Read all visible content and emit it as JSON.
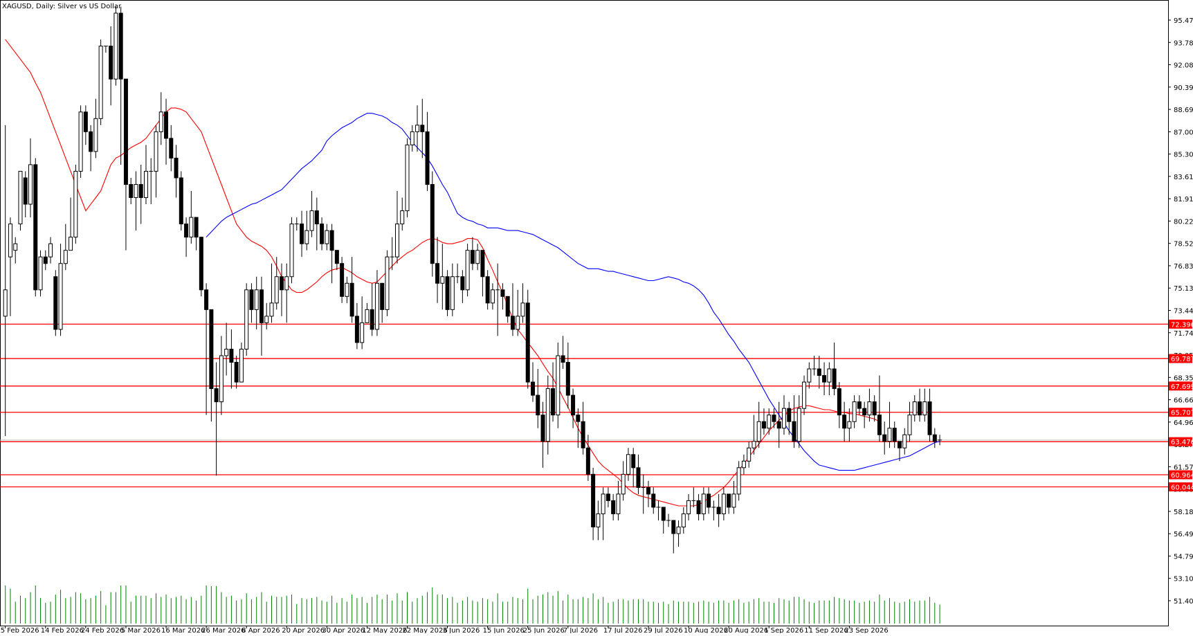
{
  "header": {
    "title": "XAGUSD, Daily:  Silver vs US Dollar"
  },
  "colors": {
    "background": "#ffffff",
    "candle_up_fill": "#ffffff",
    "candle_down_fill": "#000000",
    "wick": "#000000",
    "ma_fast": "#ff0000",
    "ma_slow": "#0000ff",
    "level_line": "#ff0000",
    "level_tag_bg": "#ff0000",
    "level_tag_text": "#ffffff",
    "volume": "#008000",
    "last_price_line": "#c0c0c0"
  },
  "chart_data": {
    "type": "candlestick",
    "title": "XAGUSD, Daily:  Silver vs US Dollar",
    "grid": false,
    "y_ticks": [
      "95.475",
      "93.780",
      "92.085",
      "90.390",
      "88.695",
      "87.000",
      "85.305",
      "83.610",
      "81.915",
      "80.220",
      "78.525",
      "76.830",
      "75.135",
      "73.440",
      "71.745",
      "70.050",
      "68.355",
      "66.660",
      "64.965",
      "63.270",
      "61.575",
      "59.880",
      "58.185",
      "56.490",
      "54.795",
      "53.100",
      "51.405"
    ],
    "ylim": [
      50.6,
      96.9
    ],
    "x_labels": [
      "5 Feb 2026",
      "14 Feb 2026",
      "24 Feb 2026",
      "5 Mar 2026",
      "16 Mar 2026",
      "26 Mar 2026",
      "8 Apr 2026",
      "20 Apr 2026",
      "30 Apr 2026",
      "12 May 2026",
      "22 May 2026",
      "3 Jun 2026",
      "15 Jun 2026",
      "25 Jun 2026",
      "7 Jul 2026",
      "17 Jul 2026",
      "29 Jul 2026",
      "10 Aug 2026",
      "20 Aug 2026",
      "1 Sep 2026",
      "11 Sep 2026",
      "23 Sep 2026"
    ],
    "x_label_bar_index": [
      0,
      8,
      16,
      24,
      32,
      40,
      48,
      56,
      64,
      72,
      80,
      88,
      96,
      104,
      112,
      120,
      128,
      136,
      144,
      152,
      160,
      168
    ],
    "horizontal_levels": [
      {
        "value": 72.396,
        "label": "72.396"
      },
      {
        "value": 69.787,
        "label": "69.787"
      },
      {
        "value": 67.699,
        "label": "67.699"
      },
      {
        "value": 65.707,
        "label": "65.707"
      },
      {
        "value": 63.476,
        "label": "63.476"
      },
      {
        "value": 60.964,
        "label": "60.964"
      },
      {
        "value": 60.044,
        "label": "60.044"
      }
    ],
    "last_price": 63.6,
    "ohlc": [
      [
        73,
        75,
        63.9,
        87.5
      ],
      [
        77.5,
        80,
        73,
        80.5
      ],
      [
        78,
        78.5,
        77,
        79
      ],
      [
        80,
        84,
        79.5,
        84
      ],
      [
        83.5,
        81.5,
        80.5,
        84
      ],
      [
        81.5,
        84.5,
        80.5,
        86.5
      ],
      [
        84.5,
        75,
        74.5,
        85
      ],
      [
        75,
        77.5,
        74.5,
        78
      ],
      [
        77.5,
        77,
        76.5,
        78
      ],
      [
        77.5,
        78.5,
        77,
        79
      ],
      [
        76,
        72,
        71.5,
        76.5
      ],
      [
        72,
        77,
        71.5,
        78.5
      ],
      [
        77,
        78,
        76.5,
        80
      ],
      [
        78,
        79,
        78,
        82
      ],
      [
        79,
        84,
        78.5,
        84.5
      ],
      [
        84,
        88.5,
        83.5,
        89
      ],
      [
        88.5,
        87,
        86,
        89
      ],
      [
        87,
        85.5,
        84,
        87.5
      ],
      [
        85.5,
        88,
        85,
        89.5
      ],
      [
        88,
        93.5,
        87.5,
        94
      ],
      [
        93.5,
        93.5,
        93,
        93.5
      ],
      [
        93.5,
        91,
        89,
        95
      ],
      [
        91,
        96,
        90.5,
        96.5
      ],
      [
        96,
        91,
        84.5,
        96.5
      ],
      [
        91,
        83,
        78,
        91
      ],
      [
        83,
        82,
        81.5,
        83.5
      ],
      [
        82,
        83,
        79.5,
        84
      ],
      [
        83,
        82,
        80,
        84.5
      ],
      [
        82,
        84,
        81.5,
        86
      ],
      [
        84,
        84,
        81.5,
        85
      ],
      [
        84,
        87,
        82,
        87.5
      ],
      [
        87,
        88.5,
        86,
        90
      ],
      [
        88.5,
        86.5,
        84.5,
        89.5
      ],
      [
        86.5,
        85,
        84,
        87.5
      ],
      [
        85,
        83.5,
        82,
        86
      ],
      [
        83.5,
        80,
        79.5,
        84
      ],
      [
        80,
        79,
        77.5,
        80.5
      ],
      [
        79,
        80.5,
        78.5,
        82.5
      ],
      [
        80.5,
        79,
        78,
        80.5
      ],
      [
        79,
        75,
        74.5,
        79
      ],
      [
        75,
        73.5,
        65.5,
        75.5
      ],
      [
        73.5,
        67.5,
        65,
        73.5
      ],
      [
        67.5,
        66.5,
        60.9,
        69.5
      ],
      [
        66.5,
        70,
        65.5,
        71.5
      ],
      [
        70,
        70.5,
        68.5,
        72.5
      ],
      [
        70.5,
        69.5,
        67.5,
        72
      ],
      [
        69.5,
        68,
        67.5,
        70
      ],
      [
        68,
        70.5,
        68,
        71
      ],
      [
        70.5,
        75,
        70,
        75.5
      ],
      [
        75,
        73.5,
        72.5,
        75.5
      ],
      [
        73.5,
        75,
        72,
        76
      ],
      [
        75,
        72.5,
        70,
        76
      ],
      [
        72.5,
        73,
        72,
        74
      ],
      [
        73,
        74,
        72.5,
        77
      ],
      [
        74,
        76,
        73.5,
        77.5
      ],
      [
        76,
        75,
        73,
        77
      ],
      [
        75,
        76,
        72.5,
        77
      ],
      [
        76,
        80,
        75.5,
        80.5
      ],
      [
        80,
        80,
        79.5,
        80.5
      ],
      [
        80,
        78.5,
        77.5,
        81
      ],
      [
        78.5,
        79.5,
        78,
        81
      ],
      [
        79.5,
        81,
        79,
        82.5
      ],
      [
        81,
        80,
        78,
        82
      ],
      [
        80,
        78.5,
        78,
        80.5
      ],
      [
        78.5,
        79.5,
        78,
        80
      ],
      [
        79.5,
        78,
        75.5,
        80
      ],
      [
        78,
        77,
        76.5,
        78
      ],
      [
        77,
        74.5,
        74,
        77.5
      ],
      [
        74.5,
        75.5,
        74,
        76
      ],
      [
        75.5,
        73,
        72.5,
        77.5
      ],
      [
        73,
        71,
        70.5,
        74
      ],
      [
        71,
        72.5,
        70.5,
        74.5
      ],
      [
        72.5,
        73.5,
        72.5,
        74
      ],
      [
        73.5,
        72,
        71.5,
        75.5
      ],
      [
        72,
        75.5,
        71.5,
        76.5
      ],
      [
        75.5,
        73.5,
        72.5,
        75.5
      ],
      [
        73.5,
        77.5,
        73,
        78
      ],
      [
        77.5,
        77.5,
        76.5,
        79
      ],
      [
        77.5,
        80,
        77,
        82.5
      ],
      [
        80,
        81,
        79.5,
        82
      ],
      [
        81,
        86,
        80.5,
        86.5
      ],
      [
        86,
        87,
        85.5,
        87.5
      ],
      [
        87,
        87.5,
        85.5,
        89
      ],
      [
        87.5,
        87,
        85,
        89.5
      ],
      [
        87,
        83,
        82.5,
        88.5
      ],
      [
        83,
        77,
        76,
        84
      ],
      [
        77,
        75.5,
        74,
        79
      ],
      [
        75.5,
        76,
        73.5,
        78.5
      ],
      [
        76,
        73.5,
        73,
        76.5
      ],
      [
        73.5,
        76,
        73,
        77
      ],
      [
        76,
        76,
        75.5,
        77
      ],
      [
        76,
        75,
        74,
        76.5
      ],
      [
        75,
        78,
        74.5,
        78.5
      ],
      [
        78,
        77,
        76.5,
        79
      ],
      [
        77,
        78,
        76.5,
        78.5
      ],
      [
        78,
        76,
        74.5,
        78
      ],
      [
        76,
        74,
        73.5,
        76.5
      ],
      [
        74,
        75,
        73.5,
        75.5
      ],
      [
        75,
        75,
        71.5,
        77
      ],
      [
        75,
        74.5,
        73.5,
        75.5
      ],
      [
        74.5,
        73,
        72.5,
        74.5
      ],
      [
        73,
        72,
        71.5,
        75.5
      ],
      [
        72,
        73,
        71.5,
        75
      ],
      [
        73,
        74,
        72.5,
        75.5
      ],
      [
        74,
        68,
        67.5,
        75
      ],
      [
        68,
        67,
        66.5,
        69.5
      ],
      [
        67,
        65.5,
        64.5,
        69
      ],
      [
        65.5,
        63.5,
        61.5,
        66.5
      ],
      [
        63.5,
        67.5,
        62.5,
        68.5
      ],
      [
        67.5,
        65.5,
        65,
        69.5
      ],
      [
        65.5,
        70,
        64.5,
        71
      ],
      [
        70,
        69.5,
        69,
        71.5
      ],
      [
        69.5,
        67,
        66,
        71
      ],
      [
        67,
        65.5,
        64.5,
        67.5
      ],
      [
        65.5,
        65,
        63,
        66
      ],
      [
        65,
        63,
        62.5,
        66.5
      ],
      [
        63,
        61,
        60.5,
        64
      ],
      [
        61,
        57,
        56,
        61.5
      ],
      [
        57,
        58,
        56,
        59
      ],
      [
        58,
        59.5,
        56,
        60
      ],
      [
        59.5,
        59,
        58.5,
        60
      ],
      [
        59,
        58,
        57.5,
        59.5
      ],
      [
        58,
        59.5,
        57.5,
        60.5
      ],
      [
        59.5,
        61,
        59,
        62
      ],
      [
        61,
        62.5,
        60.5,
        63
      ],
      [
        62.5,
        61.5,
        60,
        63
      ],
      [
        61.5,
        60,
        59.5,
        62.5
      ],
      [
        60,
        60,
        58,
        61
      ],
      [
        60,
        59.5,
        58.5,
        60.5
      ],
      [
        59.5,
        58.5,
        58,
        60
      ],
      [
        58.5,
        58.5,
        57.5,
        59
      ],
      [
        58.5,
        57.5,
        56.5,
        58.5
      ],
      [
        57.5,
        57.5,
        57,
        58
      ],
      [
        57.5,
        56.5,
        55,
        57.5
      ],
      [
        56.5,
        57,
        55.5,
        57.5
      ],
      [
        57,
        58,
        56.5,
        58.5
      ],
      [
        58,
        59,
        57.5,
        59.5
      ],
      [
        59,
        59,
        58.5,
        60
      ],
      [
        59,
        58,
        57.5,
        59.5
      ],
      [
        58,
        59.5,
        57.5,
        60
      ],
      [
        59.5,
        58.5,
        58,
        60
      ],
      [
        58.5,
        58.5,
        57.5,
        59
      ],
      [
        58.5,
        58,
        57,
        59.5
      ],
      [
        58,
        59.5,
        57.5,
        60
      ],
      [
        59.5,
        58.5,
        58,
        59.5
      ],
      [
        58.5,
        59.5,
        58,
        60.5
      ],
      [
        59.5,
        61.5,
        59,
        62
      ],
      [
        61.5,
        62,
        61,
        62.5
      ],
      [
        62,
        63,
        61.5,
        63.5
      ],
      [
        63,
        63.5,
        62.5,
        65.5
      ],
      [
        63.5,
        65,
        63,
        66.5
      ],
      [
        65,
        64.5,
        64,
        66
      ],
      [
        64.5,
        65.5,
        64,
        66
      ],
      [
        65.5,
        65,
        64.5,
        66
      ],
      [
        65,
        64.5,
        63,
        66.5
      ],
      [
        64.5,
        66,
        64,
        67
      ],
      [
        66,
        65,
        64,
        66.5
      ],
      [
        65,
        63.5,
        63,
        67
      ],
      [
        63.5,
        66,
        63,
        67
      ],
      [
        66,
        68,
        65.5,
        68.5
      ],
      [
        68,
        69,
        67.5,
        69.5
      ],
      [
        69,
        69,
        68.5,
        70
      ],
      [
        69,
        68.5,
        67.5,
        70
      ],
      [
        68.5,
        68,
        67,
        69.5
      ],
      [
        68,
        69,
        67,
        69.5
      ],
      [
        69,
        67.5,
        67,
        71
      ],
      [
        67.5,
        65.5,
        64.5,
        68
      ],
      [
        65.5,
        64.5,
        63.5,
        66.5
      ],
      [
        64.5,
        65,
        63.5,
        66
      ],
      [
        65,
        66.5,
        64.5,
        67
      ],
      [
        66.5,
        66,
        65.5,
        67
      ],
      [
        66,
        65.5,
        64.5,
        66.5
      ],
      [
        65.5,
        66.5,
        65,
        67.5
      ],
      [
        66.5,
        65.5,
        65,
        67
      ],
      [
        65.5,
        64,
        63.5,
        68.5
      ],
      [
        64,
        63.5,
        62.5,
        65
      ],
      [
        63.5,
        64.5,
        63,
        66.5
      ],
      [
        64.5,
        63.5,
        63,
        65
      ],
      [
        63.5,
        63,
        62,
        63.5
      ],
      [
        63,
        64,
        62.5,
        64.5
      ],
      [
        64,
        65.5,
        63.5,
        66.5
      ],
      [
        65.5,
        66.5,
        65,
        67
      ],
      [
        66.5,
        65.5,
        65,
        67.5
      ],
      [
        65.5,
        66.5,
        65,
        67.5
      ],
      [
        66.5,
        64,
        63.5,
        67.5
      ],
      [
        64,
        63.5,
        63,
        64.5
      ],
      [
        63.5,
        63.6,
        63.2,
        64
      ]
    ],
    "ma_fast": [
      94,
      93.5,
      93,
      92.5,
      92,
      91.5,
      90.7,
      90,
      89,
      88,
      87,
      86,
      85,
      84,
      83,
      82,
      81,
      81.5,
      82,
      82.5,
      83.5,
      84.5,
      85,
      85.2,
      85.5,
      85.8,
      86,
      86.2,
      86.5,
      87,
      87.5,
      88,
      88.5,
      88.8,
      88.8,
      88.7,
      88.5,
      88,
      87.5,
      87,
      86,
      85,
      84,
      83,
      82,
      81,
      80,
      79.5,
      79,
      78.7,
      78.5,
      78.3,
      78,
      77.5,
      76.8,
      76,
      75.5,
      75,
      74.8,
      74.8,
      75,
      75.3,
      75.6,
      76,
      76.3,
      76.5,
      76.6,
      76.7,
      76.5,
      76.3,
      76,
      75.8,
      75.6,
      75.5,
      75.6,
      76,
      76.4,
      76.8,
      77.2,
      77.5,
      77.8,
      78,
      78.3,
      78.6,
      78.8,
      78.9,
      78.8,
      78.6,
      78.5,
      78.5,
      78.6,
      78.7,
      78.9,
      78.9,
      78.8,
      78.2,
      77.3,
      76.5,
      75.6,
      74.8,
      73.8,
      72.8,
      72,
      71.5,
      71,
      70.5,
      70,
      69.4,
      68.8,
      68.3,
      67.6,
      66.8,
      66.1,
      65.3,
      64.5,
      63.8,
      63.2,
      62.6,
      62,
      61.6,
      61.3,
      61,
      60.7,
      60.3,
      59.9,
      59.6,
      59.4,
      59.3,
      59.2,
      59.1,
      59,
      58.9,
      58.8,
      58.7,
      58.6,
      58.6,
      58.6,
      58.6,
      58.7,
      58.9,
      59.2,
      59.4,
      59.7,
      60,
      60.4,
      60.9,
      61.3,
      61.8,
      62.3,
      62.8,
      63.3,
      63.8,
      64.3,
      64.7,
      65.1,
      65.4,
      65.8,
      66,
      66.1,
      66.2,
      66.2,
      66.1,
      66,
      65.9,
      65.9,
      65.8,
      65.7,
      65.7,
      65.6,
      65.6,
      65.5,
      65.4,
      65.3,
      65.2,
      65
    ],
    "ma_slow": [
      79,
      79.4,
      79.8,
      80.2,
      80.5,
      80.7,
      80.9,
      81.1,
      81.3,
      81.5,
      81.6,
      81.8,
      82,
      82.2,
      82.4,
      82.6,
      83,
      83.4,
      83.8,
      84.2,
      84.5,
      84.8,
      85.2,
      85.6,
      86.3,
      86.7,
      87,
      87.3,
      87.5,
      87.7,
      88,
      88.2,
      88.4,
      88.4,
      88.3,
      88.2,
      88,
      87.7,
      87.5,
      87.2,
      86.7,
      86.2,
      85.8,
      85.4,
      85,
      84.4,
      83.7,
      83,
      82.4,
      81.6,
      80.8,
      80.5,
      80.3,
      80.2,
      80,
      79.9,
      79.7,
      79.7,
      79.7,
      79.6,
      79.5,
      79.5,
      79.5,
      79.4,
      79.3,
      79.2,
      79,
      78.8,
      78.6,
      78.4,
      78.2,
      77.9,
      77.6,
      77.3,
      77,
      76.8,
      76.6,
      76.6,
      76.6,
      76.5,
      76.4,
      76.4,
      76.3,
      76.2,
      76.1,
      76,
      75.9,
      75.8,
      75.7,
      75.7,
      75.8,
      75.9,
      76,
      75.9,
      75.8,
      75.6,
      75.5,
      75.3,
      75,
      74.6,
      74,
      73.3,
      72.8,
      72.2,
      71.6,
      71.1,
      70.5,
      70,
      69.5,
      68.8,
      68.1,
      67.4,
      66.7,
      66.1,
      65.5,
      64.9,
      64.3,
      63.8,
      63.3,
      62.8,
      62.4,
      62,
      61.7,
      61.6,
      61.5,
      61.4,
      61.3,
      61.3,
      61.3,
      61.3,
      61.4,
      61.5,
      61.6,
      61.7,
      61.8,
      61.9,
      62,
      62.1,
      62.2,
      62.3,
      62.4,
      62.6,
      62.8,
      63,
      63.2,
      63.4,
      63.5
    ]
  }
}
